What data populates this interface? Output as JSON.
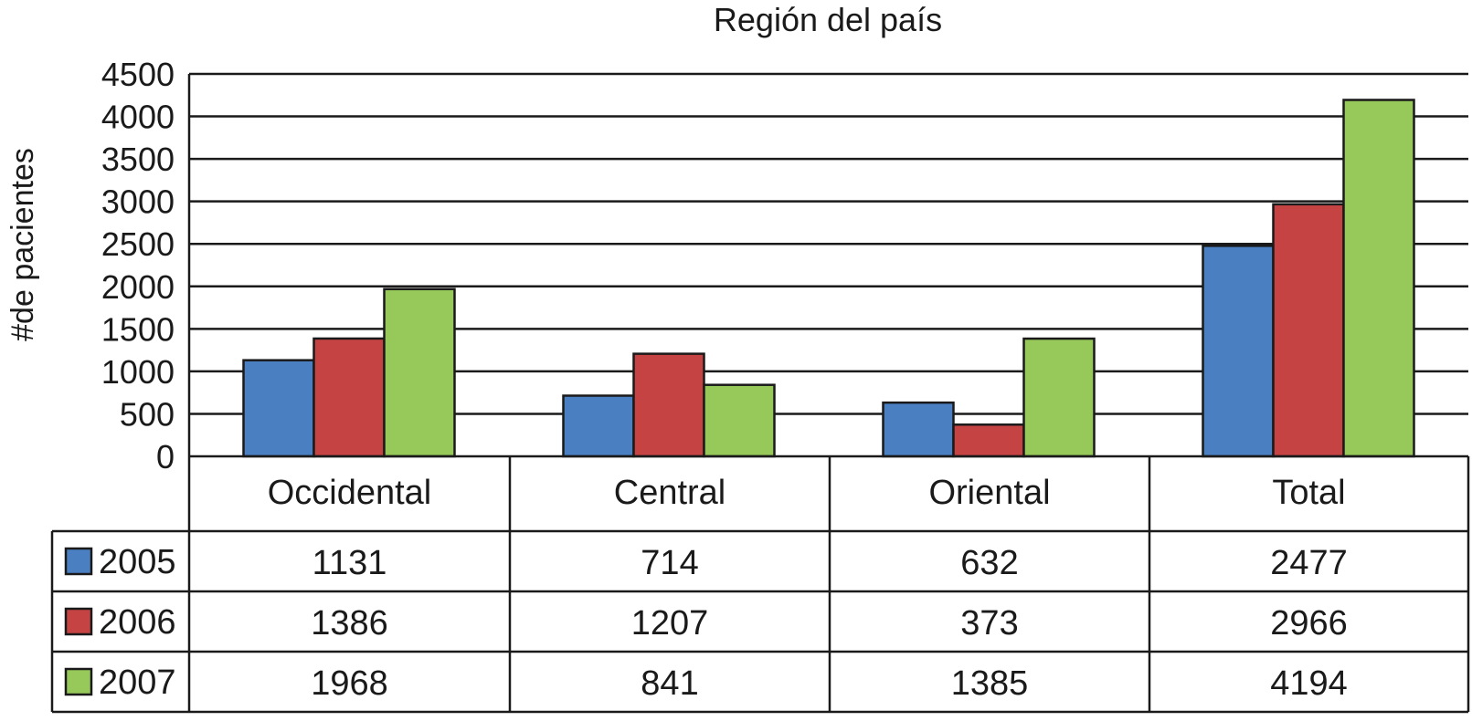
{
  "chart_data": {
    "type": "bar",
    "title": "Región del país",
    "ylabel": "#de pacientes",
    "xlabel": "",
    "ylim": [
      0,
      4500
    ],
    "yticks": [
      0,
      500,
      1000,
      1500,
      2000,
      2500,
      3000,
      3500,
      4000,
      4500
    ],
    "grid": true,
    "legend": "data-table",
    "categories": [
      "Occidental",
      "Central",
      "Oriental",
      "Total"
    ],
    "series": [
      {
        "name": "2005",
        "color": "#4a7fc1",
        "values": [
          1131,
          714,
          632,
          2477
        ]
      },
      {
        "name": "2006",
        "color": "#c64343",
        "values": [
          1386,
          1207,
          373,
          2966
        ]
      },
      {
        "name": "2007",
        "color": "#96c85a",
        "values": [
          1968,
          841,
          1385,
          4194
        ]
      }
    ]
  }
}
